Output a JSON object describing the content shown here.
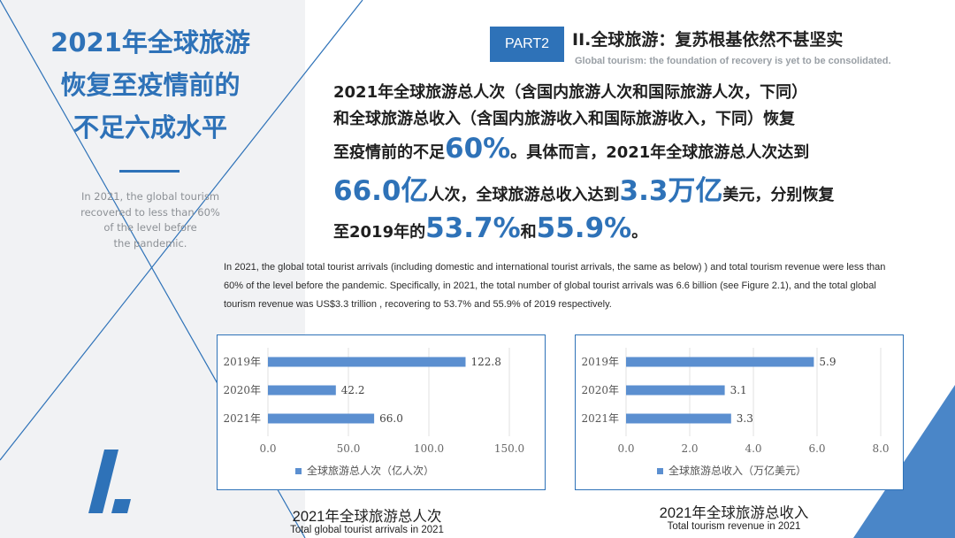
{
  "left": {
    "title_lines": [
      "2021年全球旅游",
      "恢复至疫情前的",
      "不足六成水平"
    ],
    "subtitle_lines": [
      "In 2021, the global tourism",
      "recovered to less than 60%",
      "of the level before",
      "the pandemic."
    ]
  },
  "header": {
    "badge": "PART2",
    "title": "II.全球旅游：复苏根基依然不甚坚实",
    "subtitle": "Global tourism: the foundation of recovery is yet to be consolidated."
  },
  "body": {
    "cn": {
      "l1": "2021年全球旅游总人次（含国内旅游人次和国际旅游人次，下同）",
      "l2": "和全球旅游总收入（含国内旅游收入和国际旅游收入，下同）恢复",
      "l3a": "至疫情前的不足",
      "l3_big": "60%",
      "l3b": "。具体而言，2021年全球旅游总人次达到",
      "l4_big1": "66.0亿",
      "l4a": "人次，全球旅游总收入达到",
      "l4_big2": "3.3万亿",
      "l4b": "美元，分别恢复",
      "l5a": "至2019年的",
      "l5_big1": "53.7%",
      "l5b": "和",
      "l5_big2": "55.9%",
      "l5c": "。"
    },
    "en": "In 2021, the global total tourist arrivals (including domestic and international tourist arrivals, the same as below) ) and total tourism revenue were less than 60% of the level before the pandemic. Specifically, in 2021, the total number of global tourist arrivals was 6.6 billion (see Figure 2.1), and the total global tourism revenue was US$3.3 trillion , recovering to 53.7% and 55.9% of 2019 respectively."
  },
  "captions": {
    "chart1_cn": "2021年全球旅游总人次",
    "chart1_en": "Total global tourist arrivals in 2021",
    "chart2_cn": "2021年全球旅游总收入",
    "chart2_en": "Total tourism revenue in 2021"
  },
  "colors": {
    "accent": "#2e72b8",
    "bar": "#5b8fd0",
    "panel": "#f1f2f4"
  },
  "chart_data": [
    {
      "type": "bar",
      "orientation": "horizontal",
      "categories": [
        "2019年",
        "2020年",
        "2021年"
      ],
      "series": [
        {
          "name": "全球旅游总人次（亿人次）",
          "values": [
            122.8,
            42.2,
            66.0
          ]
        }
      ],
      "value_labels": [
        "122.8",
        "42.2",
        "66.0"
      ],
      "xticks": [
        "0.0",
        "50.0",
        "100.0",
        "150.0"
      ],
      "xlim": [
        0,
        150
      ],
      "legend": "bottom",
      "grid": true
    },
    {
      "type": "bar",
      "orientation": "horizontal",
      "categories": [
        "2019年",
        "2020年",
        "2021年"
      ],
      "series": [
        {
          "name": "全球旅游总收入（万亿美元）",
          "values": [
            5.9,
            3.1,
            3.3
          ]
        }
      ],
      "value_labels": [
        "5.9",
        "3.1",
        "3.3"
      ],
      "xticks": [
        "0.0",
        "2.0",
        "4.0",
        "6.0",
        "8.0"
      ],
      "xlim": [
        0,
        8
      ],
      "legend": "bottom",
      "grid": true
    }
  ]
}
